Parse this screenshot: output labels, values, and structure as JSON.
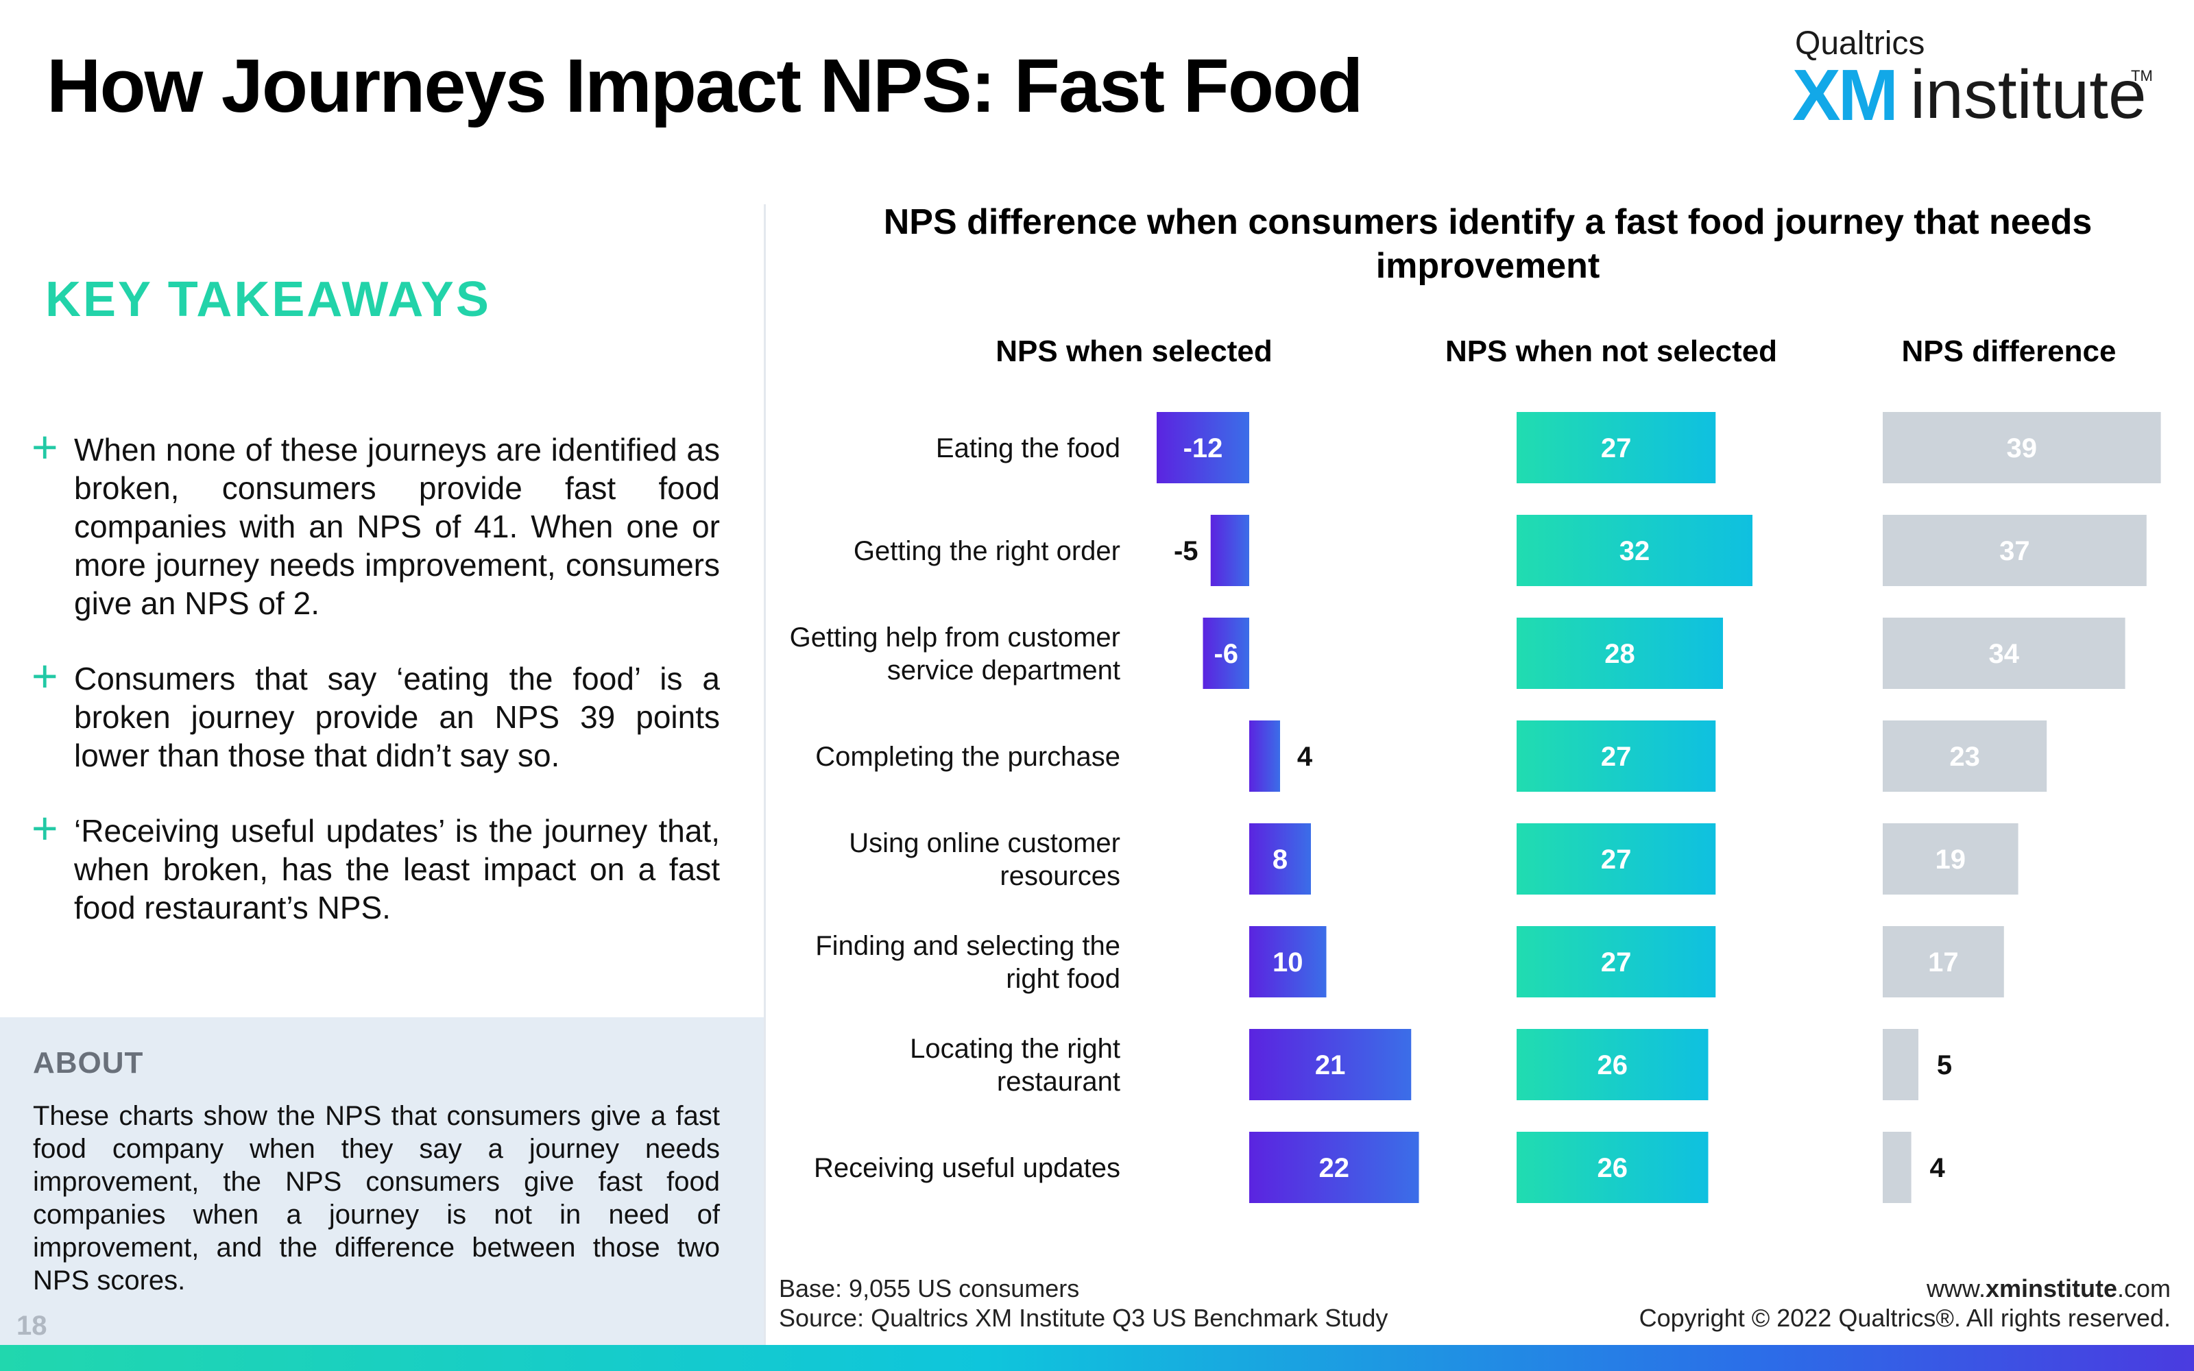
{
  "header": {
    "title": "How Journeys Impact NPS: Fast Food",
    "logo_top": "Qualtrics",
    "logo_xm": "XM",
    "logo_institute": "institute",
    "logo_tm": "TM"
  },
  "takeaways": {
    "heading": "KEY TAKEAWAYS",
    "items": [
      "When none of these journeys are identified as broken, consumers provide fast food companies with an NPS of 41. When one or more journey needs improvement, consumers give an NPS of 2.",
      "Consumers that say ‘eating the food’ is a broken journey provide an NPS 39 points lower than those that didn’t say so.",
      "‘Receiving useful updates’ is the journey that, when broken, has the least impact on a fast food restaurant’s NPS."
    ]
  },
  "about": {
    "heading": "ABOUT",
    "text": "These charts show the NPS that consumers give a fast food company when they say a journey needs improvement, the NPS consumers give fast food companies when a journey is not in need of improvement, and the difference between those two NPS scores."
  },
  "page_number": "18",
  "footer": {
    "base": "Base: 9,055 US consumers",
    "source": "Source: Qualtrics XM Institute Q3 US Benchmark Study",
    "website_prefix": "www.",
    "website_bold": "xminstitute",
    "website_suffix": ".com",
    "copyright": "Copyright © 2022 Qualtrics®. All rights reserved."
  },
  "colors": {
    "accent_green": "#22d3a9",
    "purple_start": "#5b24e0",
    "purple_end": "#3b6ee8",
    "teal_start": "#21dcb0",
    "teal_end": "#0fc0e0",
    "grey_bar": "#ccd3da"
  },
  "chart_data": {
    "type": "bar",
    "orientation": "horizontal",
    "title": "NPS difference when consumers identify a fast food journey that needs improvement",
    "categories": [
      [
        "Eating the food"
      ],
      [
        "Getting the right order"
      ],
      [
        "Getting help from customer",
        "service department"
      ],
      [
        "Completing the purchase"
      ],
      [
        "Using online customer",
        "resources"
      ],
      [
        "Finding and selecting the",
        "right food"
      ],
      [
        "Locating the right",
        "restaurant"
      ],
      [
        "Receiving useful updates"
      ]
    ],
    "series": [
      {
        "name": "NPS when selected",
        "values": [
          -12,
          -5,
          -6,
          4,
          8,
          10,
          21,
          22
        ]
      },
      {
        "name": "NPS when not selected",
        "values": [
          27,
          32,
          28,
          27,
          27,
          27,
          26,
          26
        ]
      },
      {
        "name": "NPS difference",
        "values": [
          39,
          37,
          34,
          23,
          19,
          17,
          5,
          4
        ]
      }
    ]
  }
}
